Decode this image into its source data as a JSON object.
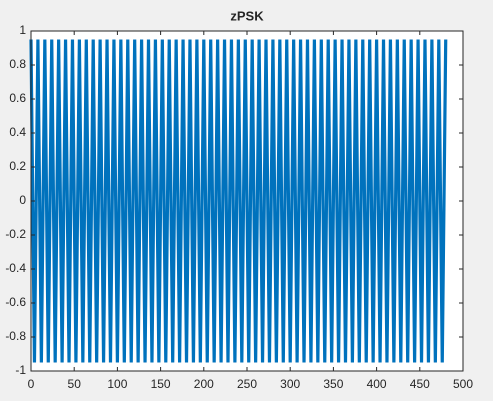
{
  "chart_data": {
    "type": "line",
    "title": "zPSK",
    "x": [
      0,
      4,
      8,
      12,
      16,
      20,
      24,
      28,
      32,
      36,
      40,
      44,
      48,
      52,
      56,
      60,
      64,
      68,
      72,
      76,
      80,
      84,
      88,
      92,
      96,
      100,
      104,
      108,
      112,
      116,
      120,
      124,
      128,
      132,
      136,
      140,
      144,
      148,
      152,
      156,
      160,
      164,
      168,
      172,
      176,
      180,
      184,
      188,
      192,
      196,
      200,
      204,
      208,
      212,
      216,
      220,
      224,
      228,
      232,
      236,
      240,
      244,
      248,
      252,
      256,
      260,
      264,
      268,
      272,
      276,
      280,
      284,
      288,
      292,
      296,
      300,
      304,
      308,
      312,
      316,
      320,
      324,
      328,
      332,
      336,
      340,
      344,
      348,
      352,
      356,
      360,
      364,
      368,
      372,
      376,
      380,
      384,
      388,
      392,
      396,
      400,
      404,
      408,
      412,
      416,
      420,
      424,
      428,
      432,
      436,
      440,
      444,
      448,
      452,
      456,
      460,
      464,
      468,
      472,
      476,
      480
    ],
    "series": [
      {
        "color": "#0072bd",
        "values": [
          0.95,
          -0.95,
          0.95,
          -0.95,
          0.95,
          -0.95,
          0.95,
          -0.95,
          0.95,
          -0.95,
          0.95,
          -0.95,
          0.95,
          -0.95,
          0.95,
          -0.95,
          0.95,
          -0.95,
          0.95,
          -0.95,
          0.95,
          -0.95,
          0.95,
          -0.95,
          0.95,
          -0.95,
          0.95,
          -0.95,
          0.95,
          -0.95,
          0.95,
          -0.95,
          0.95,
          -0.95,
          0.95,
          -0.95,
          0.95,
          -0.95,
          0.95,
          -0.95,
          0.95,
          -0.95,
          0.95,
          -0.95,
          0.95,
          -0.95,
          0.95,
          -0.95,
          0.95,
          -0.95,
          0.95,
          -0.95,
          0.95,
          -0.95,
          0.95,
          -0.95,
          0.95,
          -0.95,
          0.95,
          -0.95,
          0.95,
          -0.95,
          0.95,
          -0.95,
          0.95,
          -0.95,
          0.95,
          -0.95,
          0.95,
          -0.95,
          0.95,
          -0.95,
          0.95,
          -0.95,
          0.95,
          -0.95,
          0.95,
          -0.95,
          0.95,
          -0.95,
          0.95,
          -0.95,
          0.95,
          -0.95,
          0.95,
          -0.95,
          0.95,
          -0.95,
          0.95,
          -0.95,
          0.95,
          -0.95,
          0.95,
          -0.95,
          0.95,
          -0.95,
          0.95,
          -0.95,
          0.95,
          -0.95,
          0.95,
          -0.95,
          0.95,
          -0.95,
          0.95,
          -0.95,
          0.95,
          -0.95,
          0.95,
          -0.95,
          0.95,
          -0.95,
          0.95,
          -0.95,
          0.95,
          -0.95,
          0.95,
          -0.95,
          0.95,
          -0.95,
          0.95
        ]
      }
    ],
    "xlim": [
      0,
      500
    ],
    "xticks": [
      0,
      50,
      100,
      150,
      200,
      250,
      300,
      350,
      400,
      450,
      500
    ],
    "ylim": [
      -1,
      1
    ],
    "yticks": [
      -1,
      -0.8,
      -0.6,
      -0.4,
      -0.2,
      0,
      0.2,
      0.4,
      0.6,
      0.8,
      1
    ]
  }
}
